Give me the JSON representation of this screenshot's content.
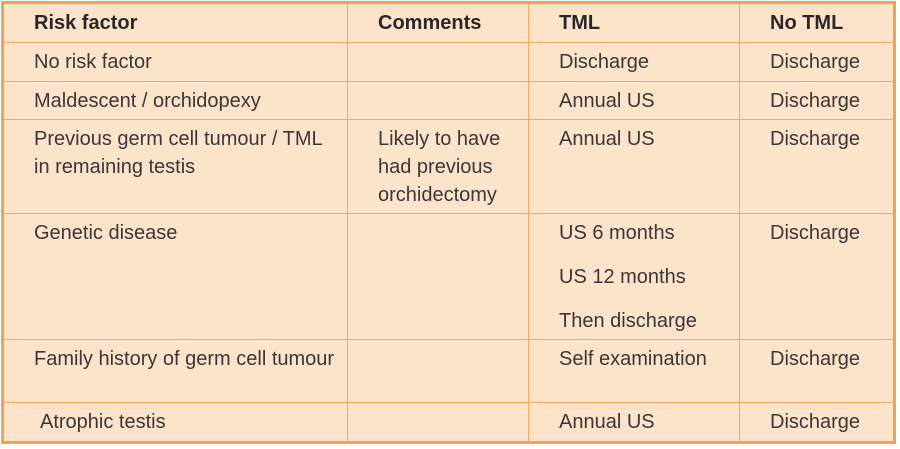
{
  "colors": {
    "cell_background": "#fce4ca",
    "grid_line": "#f2a966",
    "outer_border": "#efa258",
    "body_text": "#3b3738",
    "header_text": "#2b2728",
    "page_background": "#ffffff"
  },
  "table": {
    "columns": [
      {
        "key": "risk_factor",
        "label": "Risk factor"
      },
      {
        "key": "comments",
        "label": "Comments"
      },
      {
        "key": "tml",
        "label": "TML"
      },
      {
        "key": "no_tml",
        "label": "No TML"
      }
    ],
    "rows": [
      {
        "risk_factor": "No risk factor",
        "comments": "",
        "tml": [
          "Discharge"
        ],
        "no_tml": "Discharge"
      },
      {
        "risk_factor": "Maldescent / orchidopexy",
        "comments": "",
        "tml": [
          "Annual US"
        ],
        "no_tml": "Discharge"
      },
      {
        "risk_factor": "Previous germ cell tumour / TML in remaining testis",
        "comments": "Likely to have had previous orchidectomy",
        "tml": [
          "Annual US"
        ],
        "no_tml": "Discharge"
      },
      {
        "risk_factor": "Genetic disease",
        "comments": "",
        "tml": [
          "US 6 months",
          "US 12 months",
          "Then discharge"
        ],
        "no_tml": "Discharge"
      },
      {
        "risk_factor": "Family history of germ cell tumour",
        "comments": "",
        "tml": [
          "Self examination"
        ],
        "no_tml": "Discharge"
      },
      {
        "risk_factor": "Atrophic testis",
        "comments": "",
        "tml": [
          "Annual US"
        ],
        "no_tml": "Discharge"
      }
    ]
  }
}
